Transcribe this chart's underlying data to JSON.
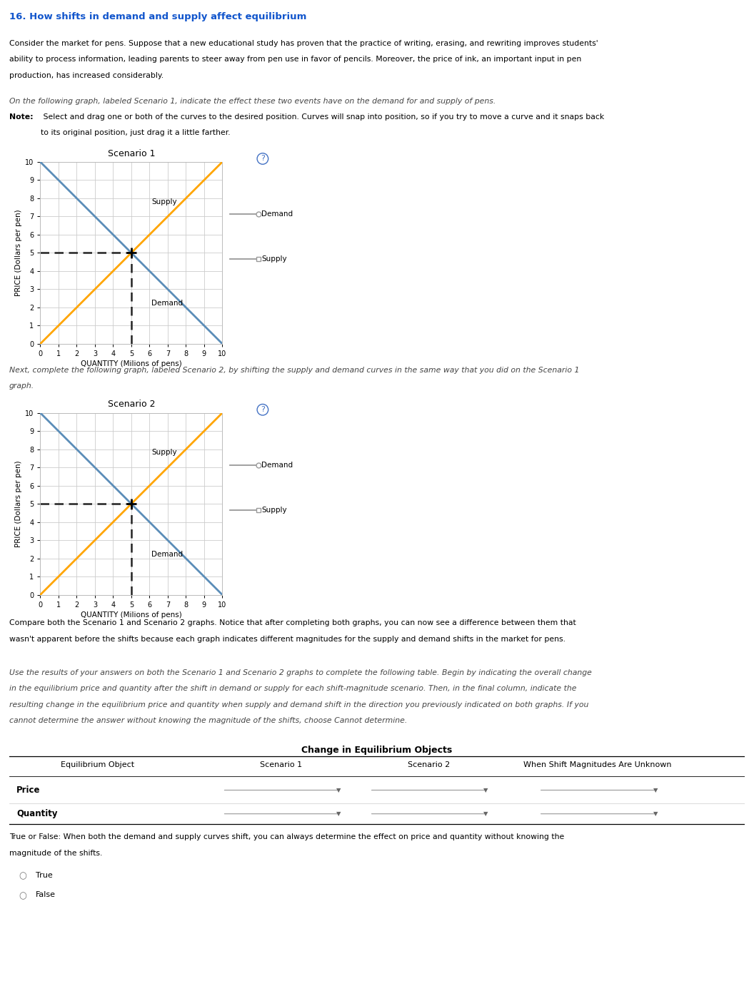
{
  "title": "16. How shifts in demand and supply affect equilibrium",
  "paragraph1_line1": "Consider the market for pens. Suppose that a new educational study has proven that the practice of writing, erasing, and rewriting improves students'",
  "paragraph1_line2": "ability to process information, leading parents to steer away from pen use in favor of pencils. Moreover, the price of ink, an important input in pen",
  "paragraph1_line3": "production, has increased considerably.",
  "italic_text1": "On the following graph, labeled Scenario 1, indicate the effect these two events have on the demand for and supply of pens.",
  "note_bold": "Note:",
  "note_rest": " Select and drag one or both of the curves to the desired position. Curves will snap into position, so if you try to move a curve and it snaps back",
  "note_rest2": "to its original position, just drag it a little farther.",
  "scenario1_title": "Scenario 1",
  "scenario2_title": "Scenario 2",
  "italic_text2_line1": "Next, complete the following graph, labeled Scenario 2, by shifting the supply and demand curves in the same way that you did on the Scenario 1",
  "italic_text2_line2": "graph.",
  "compare_line1": "Compare both the Scenario 1 and Scenario 2 graphs. Notice that after completing both graphs, you can now see a difference between them that",
  "compare_line2": "wasn't apparent before the shifts because each graph indicates different magnitudes for the supply and demand shifts in the market for pens.",
  "italic3_line1": "Use the results of your answers on both the Scenario 1 and Scenario 2 graphs to complete the following table. Begin by indicating the overall change",
  "italic3_line2": "in the equilibrium price and quantity after the shift in demand or supply for each shift-magnitude scenario. Then, in the final column, indicate the",
  "italic3_line3": "resulting change in the equilibrium price and quantity when supply and demand shift in the direction you previously indicated on both graphs. If you",
  "italic3_line4": "cannot determine the answer without knowing the magnitude of the shifts, choose Cannot determine.",
  "table_title": "Change in Equilibrium Objects",
  "table_headers": [
    "Equilibrium Object",
    "Scenario 1",
    "Scenario 2",
    "When Shift Magnitudes Are Unknown"
  ],
  "truefalse_line1": "True or False: When both the demand and supply curves shift, you can always determine the effect on price and quantity without knowing the",
  "truefalse_line2": "magnitude of the shifts.",
  "xlabel": "QUANTITY (Milions of pens)",
  "ylabel": "PRICE (Dollars per pen)",
  "xlim": [
    0,
    10
  ],
  "ylim": [
    0,
    10
  ],
  "xticks": [
    0,
    1,
    2,
    3,
    4,
    5,
    6,
    7,
    8,
    9,
    10
  ],
  "yticks": [
    0,
    1,
    2,
    3,
    4,
    5,
    6,
    7,
    8,
    9,
    10
  ],
  "supply_color": "#FFA500",
  "demand_color": "#5B8DB8",
  "dashed_color": "#222222",
  "grid_color": "#CCCCCC",
  "border_color": "#BBBBBB",
  "graph_bg": "#FFFFFF",
  "panel_bg": "#F8F8F8",
  "title_color": "#1155CC",
  "body_color": "#000000",
  "italic_color": "#444444",
  "eq_x": 5,
  "eq_y": 5
}
